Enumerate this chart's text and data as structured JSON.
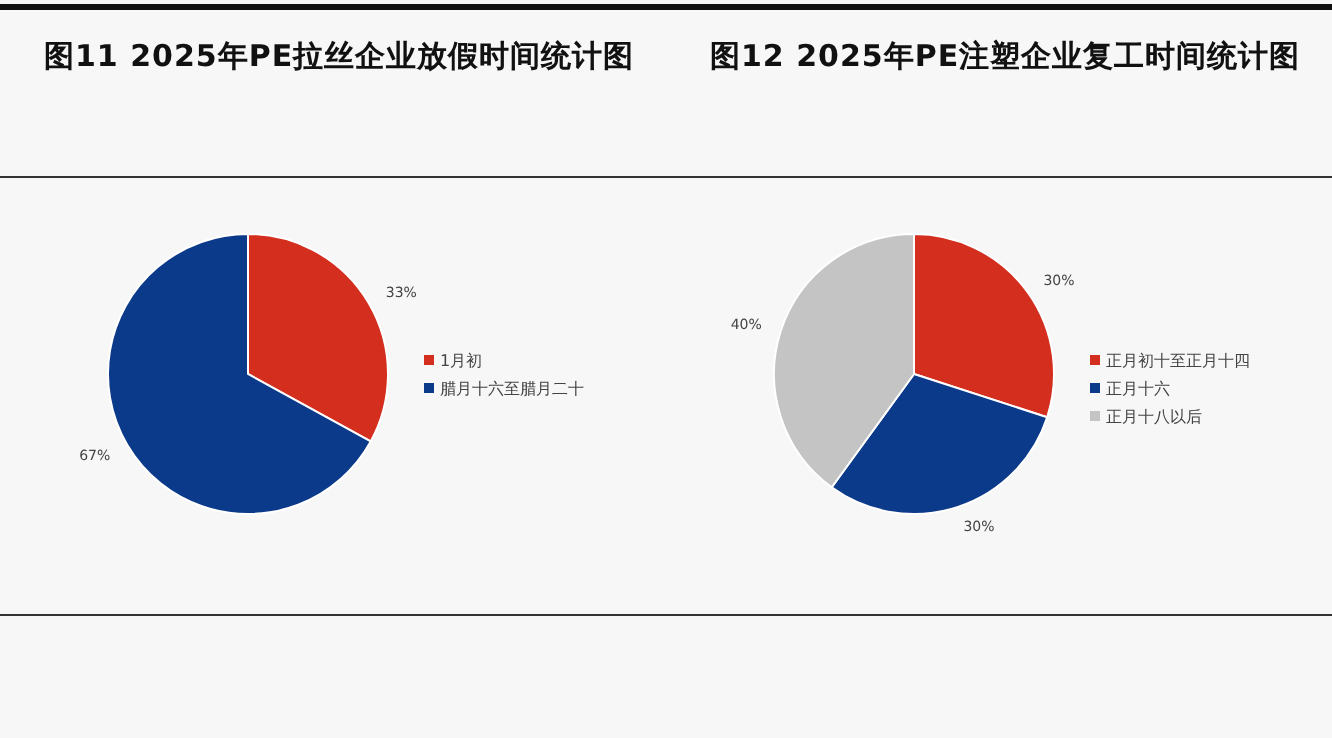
{
  "chart_data": [
    {
      "type": "pie",
      "title": "图11 2025年PE拉丝企业放假时间统计图",
      "categories": [
        "1月初",
        "腊月十六至腊月二十"
      ],
      "values": [
        33,
        67
      ],
      "colors": [
        "#d42e1f",
        "#0c3a8a"
      ],
      "value_labels": [
        "33%",
        "67%"
      ],
      "legend": "right"
    },
    {
      "type": "pie",
      "title": "图12 2025年PE注塑企业复工时间统计图",
      "categories": [
        "正月初十至正月十四",
        "正月十六",
        "正月十八以后"
      ],
      "values": [
        30,
        30,
        40
      ],
      "colors": [
        "#d42e1f",
        "#0c3a8a",
        "#c4c4c4"
      ],
      "value_labels": [
        "30%",
        "30%",
        "40%"
      ],
      "legend": "right"
    }
  ]
}
